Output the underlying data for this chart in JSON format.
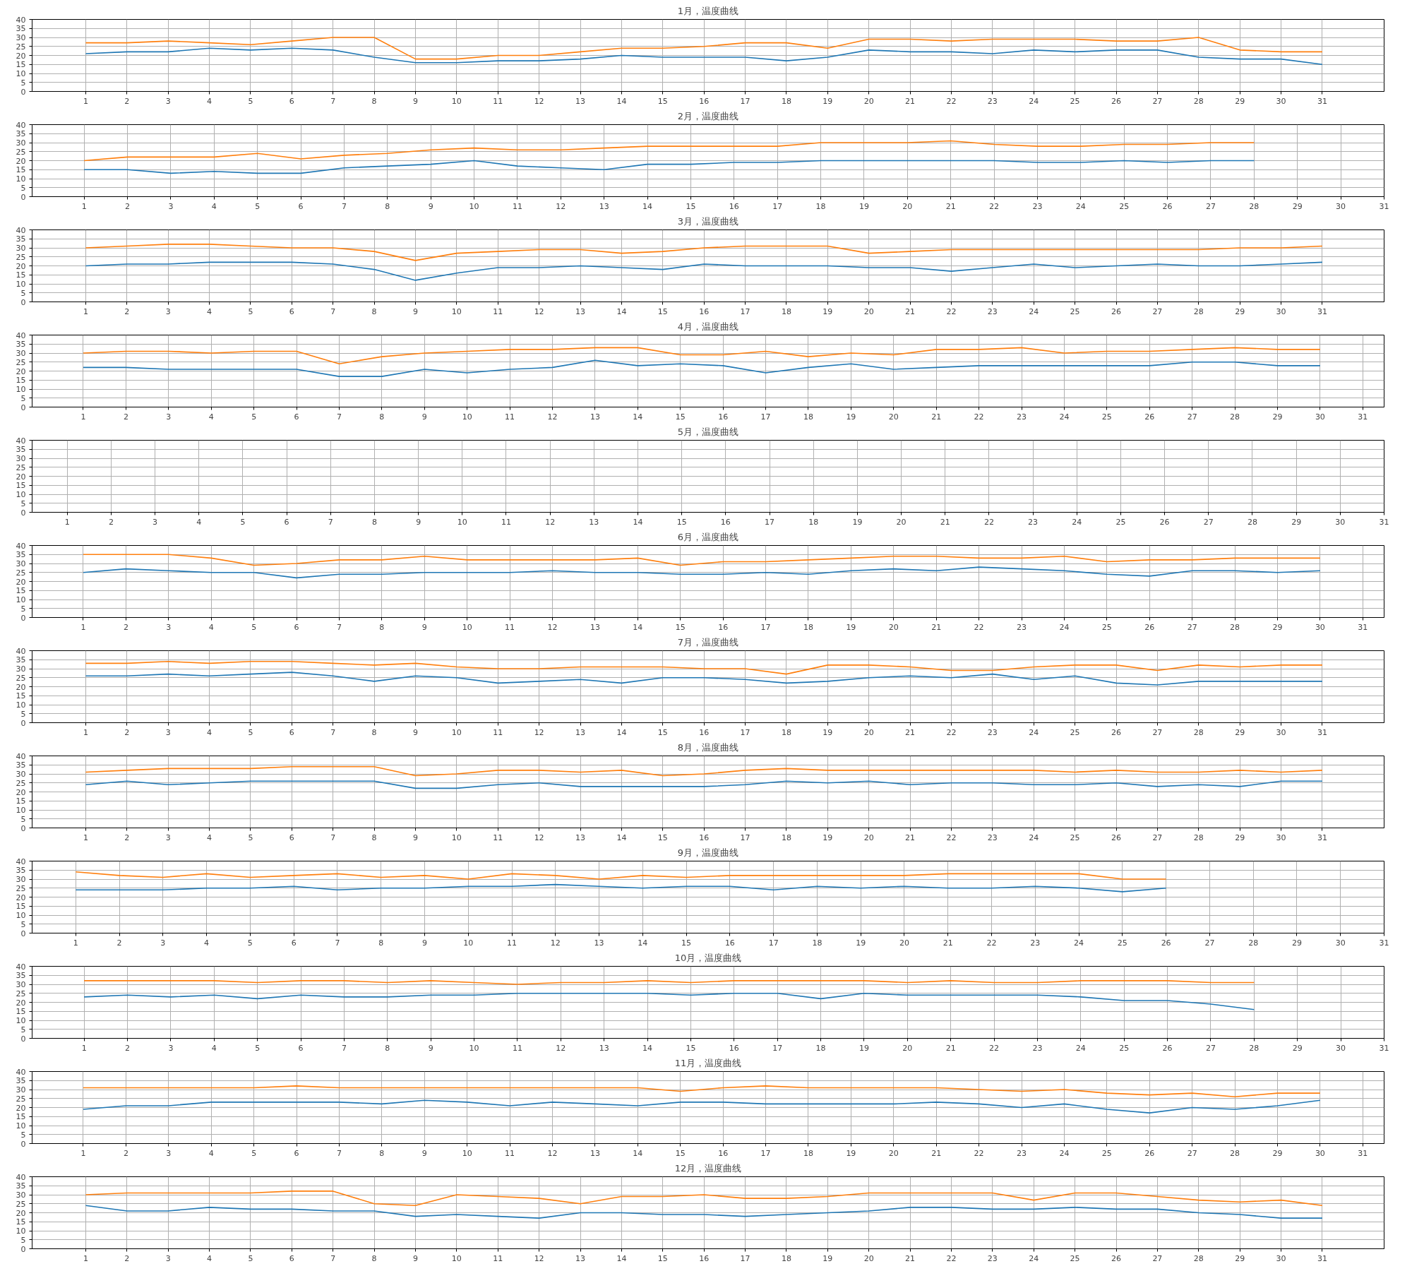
{
  "chart_data": [
    {
      "type": "line",
      "title": "1月，温度曲线",
      "x": [
        1,
        2,
        3,
        4,
        5,
        6,
        7,
        8,
        9,
        10,
        11,
        12,
        13,
        14,
        15,
        16,
        17,
        18,
        19,
        20,
        21,
        22,
        23,
        24,
        25,
        26,
        27,
        28,
        29,
        30,
        31
      ],
      "xlim": [
        -0.3,
        32.5
      ],
      "xticks": [
        1,
        2,
        3,
        4,
        5,
        6,
        7,
        8,
        9,
        10,
        11,
        12,
        13,
        14,
        15,
        16,
        17,
        18,
        19,
        20,
        21,
        22,
        23,
        24,
        25,
        26,
        27,
        28,
        29,
        30,
        31
      ],
      "ylim": [
        0,
        40
      ],
      "yticks": [
        0,
        5,
        10,
        15,
        20,
        25,
        30,
        35,
        40
      ],
      "grid": true,
      "series": [
        {
          "color": "#1f77b4",
          "values": [
            21,
            22,
            22,
            24,
            23,
            24,
            23,
            19,
            16,
            16,
            17,
            17,
            18,
            20,
            19,
            19,
            19,
            17,
            19,
            23,
            22,
            22,
            21,
            23,
            22,
            23,
            23,
            19,
            18,
            18,
            15
          ]
        },
        {
          "color": "#ff7f0e",
          "values": [
            27,
            27,
            28,
            27,
            26,
            28,
            30,
            30,
            18,
            18,
            20,
            20,
            22,
            24,
            24,
            25,
            27,
            27,
            24,
            29,
            29,
            28,
            29,
            29,
            29,
            28,
            28,
            30,
            23,
            22,
            22
          ]
        }
      ]
    },
    {
      "type": "line",
      "title": "2月，温度曲线",
      "x": [
        1,
        2,
        3,
        4,
        5,
        6,
        7,
        8,
        9,
        10,
        11,
        12,
        13,
        14,
        15,
        16,
        17,
        18,
        19,
        20,
        21,
        22,
        23,
        24,
        25,
        26,
        27,
        28
      ],
      "xlim": [
        -0.2,
        31
      ],
      "xticks": [
        1,
        2,
        3,
        4,
        5,
        6,
        7,
        8,
        9,
        10,
        11,
        12,
        13,
        14,
        15,
        16,
        17,
        18,
        19,
        20,
        21,
        22,
        23,
        24,
        25,
        26,
        27,
        28,
        29,
        30,
        31
      ],
      "ylim": [
        0,
        40
      ],
      "yticks": [
        0,
        5,
        10,
        15,
        20,
        25,
        30,
        35,
        40
      ],
      "grid": true,
      "series": [
        {
          "color": "#1f77b4",
          "values": [
            15,
            15,
            13,
            14,
            13,
            13,
            16,
            17,
            18,
            20,
            17,
            16,
            15,
            18,
            18,
            19,
            19,
            20,
            20,
            20,
            20,
            20,
            19,
            19,
            20,
            19,
            20,
            20
          ]
        },
        {
          "color": "#ff7f0e",
          "values": [
            20,
            22,
            22,
            22,
            24,
            21,
            23,
            24,
            26,
            27,
            26,
            26,
            27,
            28,
            28,
            28,
            28,
            30,
            30,
            30,
            31,
            29,
            28,
            28,
            29,
            29,
            30,
            30
          ]
        }
      ]
    },
    {
      "type": "line",
      "title": "3月，温度曲线",
      "x": [
        1,
        2,
        3,
        4,
        5,
        6,
        7,
        8,
        9,
        10,
        11,
        12,
        13,
        14,
        15,
        16,
        17,
        18,
        19,
        20,
        21,
        22,
        23,
        24,
        25,
        26,
        27,
        28,
        29,
        30,
        31
      ],
      "xlim": [
        -0.3,
        32.5
      ],
      "xticks": [
        1,
        2,
        3,
        4,
        5,
        6,
        7,
        8,
        9,
        10,
        11,
        12,
        13,
        14,
        15,
        16,
        17,
        18,
        19,
        20,
        21,
        22,
        23,
        24,
        25,
        26,
        27,
        28,
        29,
        30,
        31
      ],
      "ylim": [
        0,
        40
      ],
      "yticks": [
        0,
        5,
        10,
        15,
        20,
        25,
        30,
        35,
        40
      ],
      "grid": true,
      "series": [
        {
          "color": "#1f77b4",
          "values": [
            20,
            21,
            21,
            22,
            22,
            22,
            21,
            18,
            12,
            16,
            19,
            19,
            20,
            19,
            18,
            21,
            20,
            20,
            20,
            19,
            19,
            17,
            19,
            21,
            19,
            20,
            21,
            20,
            20,
            21,
            22
          ]
        },
        {
          "color": "#ff7f0e",
          "values": [
            30,
            31,
            32,
            32,
            31,
            30,
            30,
            28,
            23,
            27,
            28,
            29,
            29,
            27,
            28,
            30,
            31,
            31,
            31,
            27,
            28,
            29,
            29,
            29,
            29,
            29,
            29,
            29,
            30,
            30,
            31
          ]
        }
      ]
    },
    {
      "type": "line",
      "title": "4月，温度曲线",
      "x": [
        1,
        2,
        3,
        4,
        5,
        6,
        7,
        8,
        9,
        10,
        11,
        12,
        13,
        14,
        15,
        16,
        17,
        18,
        19,
        20,
        21,
        22,
        23,
        24,
        25,
        26,
        27,
        28,
        29,
        30
      ],
      "xlim": [
        -0.2,
        31.5
      ],
      "xticks": [
        1,
        2,
        3,
        4,
        5,
        6,
        7,
        8,
        9,
        10,
        11,
        12,
        13,
        14,
        15,
        16,
        17,
        18,
        19,
        20,
        21,
        22,
        23,
        24,
        25,
        26,
        27,
        28,
        29,
        30,
        31
      ],
      "ylim": [
        0,
        40
      ],
      "yticks": [
        0,
        5,
        10,
        15,
        20,
        25,
        30,
        35,
        40
      ],
      "grid": true,
      "series": [
        {
          "color": "#1f77b4",
          "values": [
            22,
            22,
            21,
            21,
            21,
            21,
            17,
            17,
            21,
            19,
            21,
            22,
            26,
            23,
            24,
            23,
            19,
            22,
            24,
            21,
            22,
            23,
            23,
            23,
            23,
            23,
            25,
            25,
            23,
            23
          ]
        },
        {
          "color": "#ff7f0e",
          "values": [
            30,
            31,
            31,
            30,
            31,
            31,
            24,
            28,
            30,
            31,
            32,
            32,
            33,
            33,
            29,
            29,
            31,
            28,
            30,
            29,
            32,
            32,
            33,
            30,
            31,
            31,
            32,
            33,
            32,
            32
          ]
        }
      ]
    },
    {
      "type": "line",
      "title": "5月，温度曲线",
      "xlim": [
        0.2,
        31
      ],
      "xticks": [
        1,
        2,
        3,
        4,
        5,
        6,
        7,
        8,
        9,
        10,
        11,
        12,
        13,
        14,
        15,
        16,
        17,
        18,
        19,
        20,
        21,
        22,
        23,
        24,
        25,
        26,
        27,
        28,
        29,
        30,
        31
      ],
      "ylim": [
        0,
        40
      ],
      "yticks": [
        0,
        5,
        10,
        15,
        20,
        25,
        30,
        35,
        40
      ],
      "grid": true
    },
    {
      "type": "line",
      "title": "6月，温度曲线",
      "x": [
        1,
        2,
        3,
        4,
        5,
        6,
        7,
        8,
        9,
        10,
        11,
        12,
        13,
        14,
        15,
        16,
        17,
        18,
        19,
        20,
        21,
        22,
        23,
        24,
        25,
        26,
        27,
        28,
        29,
        30
      ],
      "xlim": [
        -0.2,
        31.5
      ],
      "xticks": [
        1,
        2,
        3,
        4,
        5,
        6,
        7,
        8,
        9,
        10,
        11,
        12,
        13,
        14,
        15,
        16,
        17,
        18,
        19,
        20,
        21,
        22,
        23,
        24,
        25,
        26,
        27,
        28,
        29,
        30,
        31
      ],
      "ylim": [
        0,
        40
      ],
      "yticks": [
        0,
        5,
        10,
        15,
        20,
        25,
        30,
        35,
        40
      ],
      "grid": true,
      "series": [
        {
          "color": "#1f77b4",
          "values": [
            25,
            27,
            26,
            25,
            25,
            22,
            24,
            24,
            25,
            25,
            25,
            26,
            25,
            25,
            24,
            24,
            25,
            24,
            26,
            27,
            26,
            28,
            27,
            26,
            24,
            23,
            26,
            26,
            25,
            26
          ]
        },
        {
          "color": "#ff7f0e",
          "values": [
            35,
            35,
            35,
            33,
            29,
            30,
            32,
            32,
            34,
            32,
            32,
            32,
            32,
            33,
            29,
            31,
            31,
            32,
            33,
            34,
            34,
            33,
            33,
            34,
            31,
            32,
            32,
            33,
            33,
            33
          ]
        }
      ]
    },
    {
      "type": "line",
      "title": "7月，温度曲线",
      "x": [
        1,
        2,
        3,
        4,
        5,
        6,
        7,
        8,
        9,
        10,
        11,
        12,
        13,
        14,
        15,
        16,
        17,
        18,
        19,
        20,
        21,
        22,
        23,
        24,
        25,
        26,
        27,
        28,
        29,
        30,
        31
      ],
      "xlim": [
        -0.3,
        32.5
      ],
      "xticks": [
        1,
        2,
        3,
        4,
        5,
        6,
        7,
        8,
        9,
        10,
        11,
        12,
        13,
        14,
        15,
        16,
        17,
        18,
        19,
        20,
        21,
        22,
        23,
        24,
        25,
        26,
        27,
        28,
        29,
        30,
        31
      ],
      "ylim": [
        0,
        40
      ],
      "yticks": [
        0,
        5,
        10,
        15,
        20,
        25,
        30,
        35,
        40
      ],
      "grid": true,
      "series": [
        {
          "color": "#1f77b4",
          "values": [
            26,
            26,
            27,
            26,
            27,
            28,
            26,
            23,
            26,
            25,
            22,
            23,
            24,
            22,
            25,
            25,
            24,
            22,
            23,
            25,
            26,
            25,
            27,
            24,
            26,
            22,
            21,
            23,
            23,
            23,
            23
          ]
        },
        {
          "color": "#ff7f0e",
          "values": [
            33,
            33,
            34,
            33,
            34,
            34,
            33,
            32,
            33,
            31,
            30,
            30,
            31,
            31,
            31,
            30,
            30,
            27,
            32,
            32,
            31,
            29,
            29,
            31,
            32,
            32,
            29,
            32,
            31,
            32,
            32
          ]
        }
      ]
    },
    {
      "type": "line",
      "title": "8月，温度曲线",
      "x": [
        1,
        2,
        3,
        4,
        5,
        6,
        7,
        8,
        9,
        10,
        11,
        12,
        13,
        14,
        15,
        16,
        17,
        18,
        19,
        20,
        21,
        22,
        23,
        24,
        25,
        26,
        27,
        28,
        29,
        30,
        31
      ],
      "xlim": [
        -0.3,
        32.5
      ],
      "xticks": [
        1,
        2,
        3,
        4,
        5,
        6,
        7,
        8,
        9,
        10,
        11,
        12,
        13,
        14,
        15,
        16,
        17,
        18,
        19,
        20,
        21,
        22,
        23,
        24,
        25,
        26,
        27,
        28,
        29,
        30,
        31
      ],
      "ylim": [
        0,
        40
      ],
      "yticks": [
        0,
        5,
        10,
        15,
        20,
        25,
        30,
        35,
        40
      ],
      "grid": true,
      "series": [
        {
          "color": "#1f77b4",
          "values": [
            24,
            26,
            24,
            25,
            26,
            26,
            26,
            26,
            22,
            22,
            24,
            25,
            23,
            23,
            23,
            23,
            24,
            26,
            25,
            26,
            24,
            25,
            25,
            24,
            24,
            25,
            23,
            24,
            23,
            26,
            26
          ]
        },
        {
          "color": "#ff7f0e",
          "values": [
            31,
            32,
            33,
            33,
            33,
            34,
            34,
            34,
            29,
            30,
            32,
            32,
            31,
            32,
            29,
            30,
            32,
            33,
            32,
            32,
            32,
            32,
            32,
            32,
            31,
            32,
            31,
            31,
            32,
            31,
            32
          ]
        }
      ]
    },
    {
      "type": "line",
      "title": "9月，温度曲线",
      "x": [
        1,
        2,
        3,
        4,
        5,
        6,
        7,
        8,
        9,
        10,
        11,
        12,
        13,
        14,
        15,
        16,
        17,
        18,
        19,
        20,
        21,
        22,
        23,
        24,
        25,
        26
      ],
      "xlim": [
        0,
        31
      ],
      "xticks": [
        1,
        2,
        3,
        4,
        5,
        6,
        7,
        8,
        9,
        10,
        11,
        12,
        13,
        14,
        15,
        16,
        17,
        18,
        19,
        20,
        21,
        22,
        23,
        24,
        25,
        26,
        27,
        28,
        29,
        30,
        31
      ],
      "ylim": [
        0,
        40
      ],
      "yticks": [
        0,
        5,
        10,
        15,
        20,
        25,
        30,
        35,
        40
      ],
      "grid": true,
      "series": [
        {
          "color": "#1f77b4",
          "values": [
            24,
            24,
            24,
            25,
            25,
            26,
            24,
            25,
            25,
            26,
            26,
            27,
            26,
            25,
            26,
            26,
            24,
            26,
            25,
            26,
            25,
            25,
            26,
            25,
            23,
            25
          ]
        },
        {
          "color": "#ff7f0e",
          "values": [
            34,
            32,
            31,
            33,
            31,
            32,
            33,
            31,
            32,
            30,
            33,
            32,
            30,
            32,
            31,
            32,
            32,
            32,
            32,
            32,
            33,
            33,
            33,
            33,
            30,
            30
          ]
        }
      ]
    },
    {
      "type": "line",
      "title": "10月，温度曲线",
      "x": [
        1,
        2,
        3,
        4,
        5,
        6,
        7,
        8,
        9,
        10,
        11,
        12,
        13,
        14,
        15,
        16,
        17,
        18,
        19,
        20,
        21,
        22,
        23,
        24,
        25,
        26,
        27,
        28
      ],
      "xlim": [
        -0.2,
        31
      ],
      "xticks": [
        1,
        2,
        3,
        4,
        5,
        6,
        7,
        8,
        9,
        10,
        11,
        12,
        13,
        14,
        15,
        16,
        17,
        18,
        19,
        20,
        21,
        22,
        23,
        24,
        25,
        26,
        27,
        28,
        29,
        30,
        31
      ],
      "ylim": [
        0,
        40
      ],
      "yticks": [
        0,
        5,
        10,
        15,
        20,
        25,
        30,
        35,
        40
      ],
      "grid": true,
      "series": [
        {
          "color": "#1f77b4",
          "values": [
            23,
            24,
            23,
            24,
            22,
            24,
            23,
            23,
            24,
            24,
            25,
            25,
            25,
            25,
            24,
            25,
            25,
            22,
            25,
            24,
            24,
            24,
            24,
            23,
            21,
            21,
            19,
            16
          ]
        },
        {
          "color": "#ff7f0e",
          "values": [
            32,
            32,
            32,
            32,
            31,
            32,
            32,
            31,
            32,
            31,
            30,
            31,
            31,
            32,
            31,
            32,
            32,
            32,
            32,
            31,
            32,
            31,
            31,
            32,
            32,
            32,
            31,
            31
          ]
        }
      ]
    },
    {
      "type": "line",
      "title": "11月，温度曲线",
      "x": [
        1,
        2,
        3,
        4,
        5,
        6,
        7,
        8,
        9,
        10,
        11,
        12,
        13,
        14,
        15,
        16,
        17,
        18,
        19,
        20,
        21,
        22,
        23,
        24,
        25,
        26,
        27,
        28,
        29,
        30
      ],
      "xlim": [
        -0.2,
        31.5
      ],
      "xticks": [
        1,
        2,
        3,
        4,
        5,
        6,
        7,
        8,
        9,
        10,
        11,
        12,
        13,
        14,
        15,
        16,
        17,
        18,
        19,
        20,
        21,
        22,
        23,
        24,
        25,
        26,
        27,
        28,
        29,
        30,
        31
      ],
      "ylim": [
        0,
        40
      ],
      "yticks": [
        0,
        5,
        10,
        15,
        20,
        25,
        30,
        35,
        40
      ],
      "grid": true,
      "series": [
        {
          "color": "#1f77b4",
          "values": [
            19,
            21,
            21,
            23,
            23,
            23,
            23,
            22,
            24,
            23,
            21,
            23,
            22,
            21,
            23,
            23,
            22,
            22,
            22,
            22,
            23,
            22,
            20,
            22,
            19,
            17,
            20,
            19,
            21,
            24
          ]
        },
        {
          "color": "#ff7f0e",
          "values": [
            31,
            31,
            31,
            31,
            31,
            32,
            31,
            31,
            31,
            31,
            31,
            31,
            31,
            31,
            29,
            31,
            32,
            31,
            31,
            31,
            31,
            30,
            29,
            30,
            28,
            27,
            28,
            26,
            28,
            28
          ]
        }
      ]
    },
    {
      "type": "line",
      "title": "12月，温度曲线",
      "x": [
        1,
        2,
        3,
        4,
        5,
        6,
        7,
        8,
        9,
        10,
        11,
        12,
        13,
        14,
        15,
        16,
        17,
        18,
        19,
        20,
        21,
        22,
        23,
        24,
        25,
        26,
        27,
        28,
        29,
        30,
        31
      ],
      "xlim": [
        -0.3,
        32.5
      ],
      "xticks": [
        1,
        2,
        3,
        4,
        5,
        6,
        7,
        8,
        9,
        10,
        11,
        12,
        13,
        14,
        15,
        16,
        17,
        18,
        19,
        20,
        21,
        22,
        23,
        24,
        25,
        26,
        27,
        28,
        29,
        30,
        31
      ],
      "ylim": [
        0,
        40
      ],
      "yticks": [
        0,
        5,
        10,
        15,
        20,
        25,
        30,
        35,
        40
      ],
      "grid": true,
      "series": [
        {
          "color": "#1f77b4",
          "values": [
            24,
            21,
            21,
            23,
            22,
            22,
            21,
            21,
            18,
            19,
            18,
            17,
            20,
            20,
            19,
            19,
            18,
            19,
            20,
            21,
            23,
            23,
            22,
            22,
            23,
            22,
            22,
            20,
            19,
            17,
            17
          ]
        },
        {
          "color": "#ff7f0e",
          "values": [
            30,
            31,
            31,
            31,
            31,
            32,
            32,
            25,
            24,
            30,
            29,
            28,
            25,
            29,
            29,
            30,
            28,
            28,
            29,
            31,
            31,
            31,
            31,
            27,
            31,
            31,
            29,
            27,
            26,
            27,
            24
          ]
        }
      ]
    }
  ]
}
